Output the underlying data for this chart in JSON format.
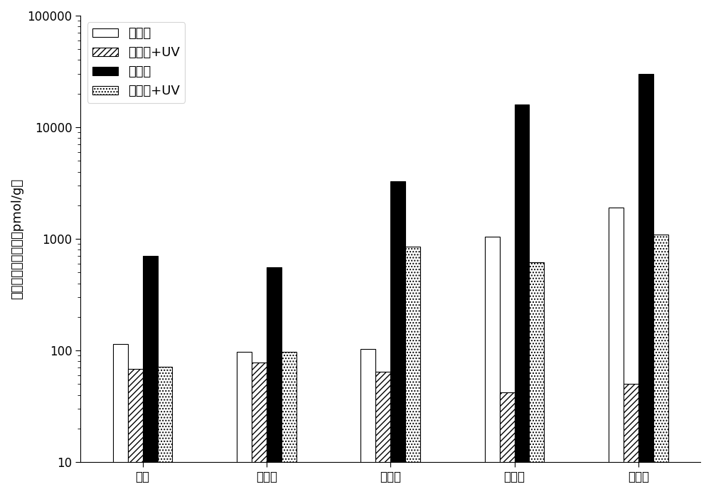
{
  "categories": [
    "对照",
    "赋形剂",
    "视黄酸",
    "视黄醇",
    "视黄醒"
  ],
  "series": {
    "视黄醇": [
      115,
      97,
      103,
      1050,
      1900
    ],
    "视黄醇+UV": [
      68,
      78,
      65,
      42,
      50
    ],
    "视黄酯": [
      700,
      560,
      3300,
      16000,
      30000
    ],
    "视黄酯+UV": [
      72,
      97,
      850,
      620,
      1100
    ]
  },
  "series_order": [
    "视黄醇",
    "视黄醇+UV",
    "视黄酯",
    "视黄酯+UV"
  ],
  "ylabel": "表皮的视黄醇浓度（pmol/g）",
  "ylim": [
    10,
    100000
  ],
  "yticks": [
    10,
    100,
    1000,
    10000,
    100000
  ],
  "ytick_labels": [
    "10",
    "100",
    "1000",
    "10000",
    "100000"
  ],
  "background_color": "#ffffff",
  "bar_width": 0.12,
  "hatches": [
    "",
    "////",
    "",
    "...."
  ],
  "facecolors": [
    "white",
    "white",
    "black",
    "white"
  ],
  "edgecolors": [
    "black",
    "black",
    "black",
    "black"
  ],
  "font_size": 13,
  "tick_font_size": 12,
  "legend_font_size": 13,
  "legend_labels": [
    "视黄醇",
    "视黄醇+UV",
    "视黄酯",
    "视黄酯+UV"
  ]
}
